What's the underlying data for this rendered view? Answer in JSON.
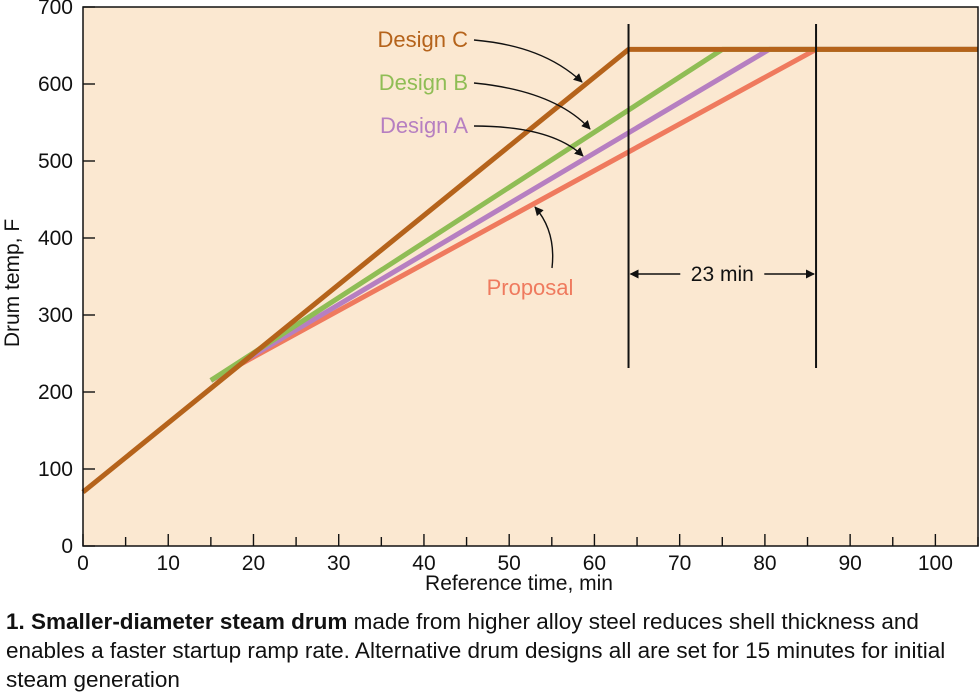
{
  "chart_data": {
    "type": "line",
    "xlabel": "Reference time, min",
    "ylabel": "Drum temp, F",
    "xlim": [
      0,
      105
    ],
    "ylim": [
      0,
      700
    ],
    "x_ticks": [
      0,
      10,
      20,
      30,
      40,
      50,
      60,
      70,
      80,
      90,
      100
    ],
    "y_ticks": [
      0,
      100,
      200,
      300,
      400,
      500,
      600,
      700
    ],
    "grid": false,
    "series": [
      {
        "name": "Proposal",
        "color": "#ef7a5e",
        "points": [
          [
            15,
            215
          ],
          [
            86,
            645
          ],
          [
            105,
            645
          ]
        ]
      },
      {
        "name": "Design A",
        "color": "#b67fc1",
        "points": [
          [
            15,
            215
          ],
          [
            80.5,
            645
          ],
          [
            105,
            645
          ]
        ]
      },
      {
        "name": "Design B",
        "color": "#8fbd55",
        "points": [
          [
            15,
            215
          ],
          [
            75,
            645
          ],
          [
            105,
            645
          ]
        ]
      },
      {
        "name": "Design C",
        "color": "#b5631b",
        "points": [
          [
            0,
            70
          ],
          [
            64,
            645
          ],
          [
            105,
            645
          ]
        ]
      }
    ],
    "annotations": [
      {
        "label": "23 min",
        "x_start": 64,
        "x_end": 86
      }
    ]
  },
  "caption": {
    "bold": "1. Smaller-diameter steam drum",
    "text": " made from higher alloy steel reduces shell thickness and enables a faster startup ramp rate. Alternative drum designs all are set for 15 minutes for initial steam generation"
  }
}
